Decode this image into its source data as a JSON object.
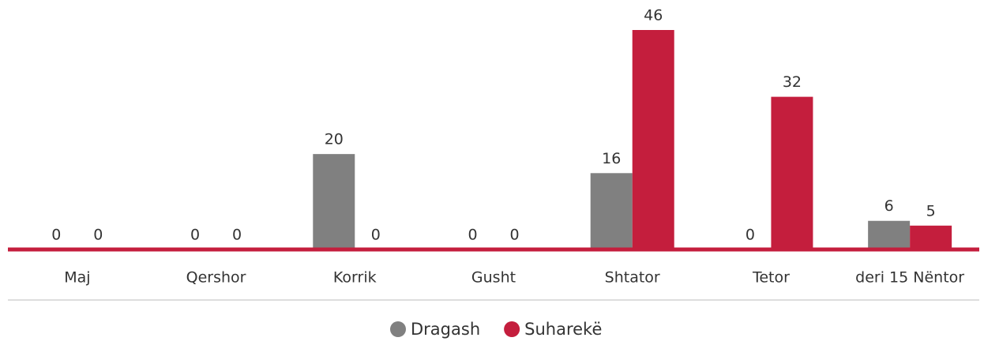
{
  "chart_data": {
    "type": "bar",
    "categories": [
      "Maj",
      "Qershor",
      "Korrik",
      "Gusht",
      "Shtator",
      "Tetor",
      "deri 15 Nëntor"
    ],
    "series": [
      {
        "name": "Dragash",
        "color": "#808080",
        "values": [
          0,
          0,
          20,
          0,
          16,
          0,
          6
        ]
      },
      {
        "name": "Suharekë",
        "color": "#c41e3d",
        "values": [
          0,
          0,
          0,
          0,
          46,
          32,
          5
        ]
      }
    ],
    "legend": "bottom"
  }
}
